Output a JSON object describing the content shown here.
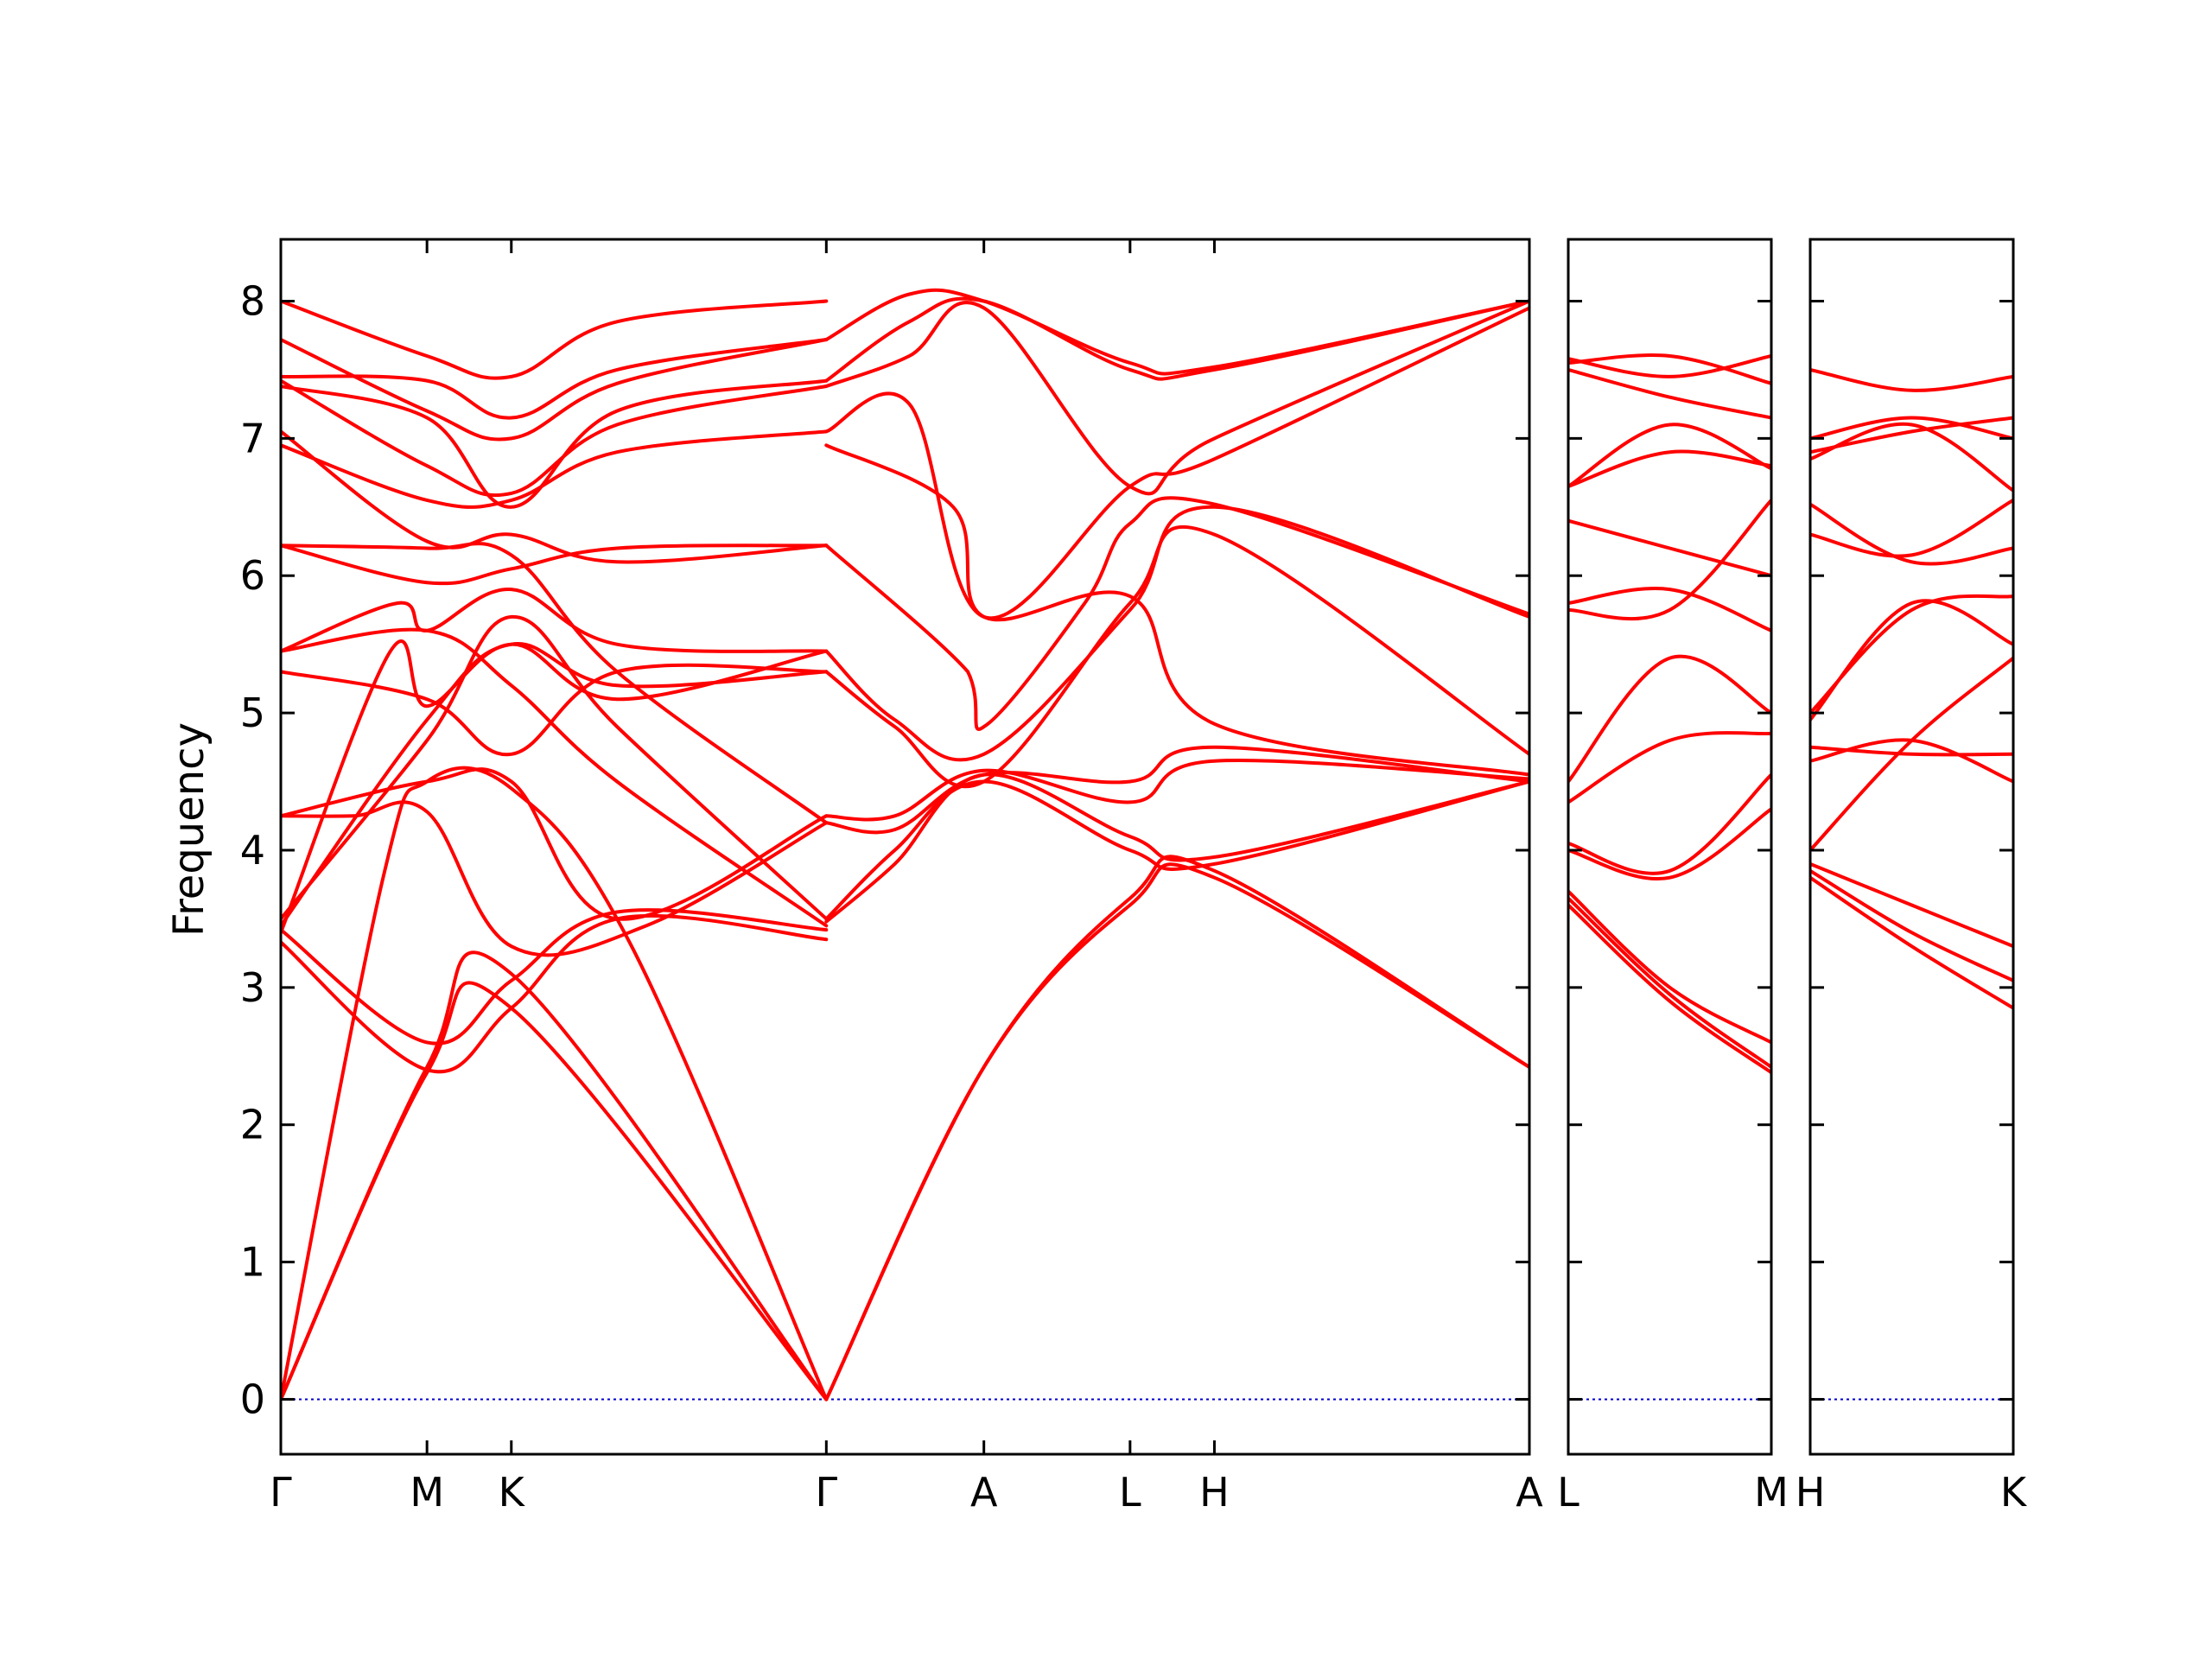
{
  "chart_data": {
    "type": "line",
    "title": "",
    "ylabel": "Frequency",
    "xlabel": "",
    "ylim": [
      -0.4,
      8.45
    ],
    "yticks": [
      0,
      1,
      2,
      3,
      4,
      5,
      6,
      7,
      8
    ],
    "grid": false,
    "legend": "none",
    "colors": {
      "bands": "#ff0000",
      "zero_line": "#0000cc",
      "axes": "#000000"
    },
    "panels": [
      {
        "id": "panel-1",
        "labels": [
          "Γ",
          "M",
          "K",
          "Γ",
          "A",
          "L",
          "H",
          "A"
        ],
        "points": [
          0,
          1.0,
          1.577,
          3.732,
          4.81,
          5.81,
          6.387,
          8.542
        ],
        "bands": [
          {
            "x": [
              0,
              1.0,
              1.577,
              3.732
            ],
            "y": [
              0.0,
              2.38,
              2.85,
              0.0
            ]
          },
          {
            "x": [
              0,
              1.0,
              1.577,
              3.732
            ],
            "y": [
              0.0,
              2.42,
              3.1,
              0.0
            ]
          },
          {
            "x": [
              0,
              0.7,
              1.0,
              1.577,
              2.4,
              3.732
            ],
            "y": [
              0.0,
              3.8,
              4.5,
              4.45,
              3.3,
              0.0
            ]
          },
          {
            "x": [
              3.732,
              4.81,
              5.81,
              6.387,
              8.542
            ],
            "y": [
              0.0,
              2.42,
              3.6,
              3.8,
              2.42
            ]
          },
          {
            "x": [
              3.732,
              4.81,
              5.81,
              6.387,
              8.542
            ],
            "y": [
              0.0,
              2.42,
              3.65,
              3.85,
              2.42
            ]
          },
          {
            "x": [
              0,
              1.0,
              1.577,
              2.3,
              3.732
            ],
            "y": [
              3.33,
              2.4,
              2.85,
              3.5,
              3.35
            ]
          },
          {
            "x": [
              0,
              1.0,
              1.577,
              2.3,
              3.732
            ],
            "y": [
              3.42,
              2.6,
              3.05,
              3.55,
              3.42
            ]
          },
          {
            "x": [
              0,
              0.5,
              1.0,
              1.577,
              2.5,
              3.732
            ],
            "y": [
              4.25,
              4.25,
              4.28,
              3.3,
              3.45,
              4.2
            ]
          },
          {
            "x": [
              0,
              1.0,
              1.577,
              2.3,
              3.732
            ],
            "y": [
              4.25,
              4.5,
              4.5,
              3.5,
              4.25
            ]
          },
          {
            "x": [
              0,
              1.0,
              1.577,
              2.3,
              3.732
            ],
            "y": [
              3.5,
              4.8,
              5.7,
              4.9,
              3.5
            ]
          },
          {
            "x": [
              0,
              1.0,
              1.577,
              2.3,
              3.732
            ],
            "y": [
              3.45,
              4.95,
              5.5,
              5.2,
              5.3
            ]
          },
          {
            "x": [
              0,
              0.75,
              1.0,
              1.577,
              2.3,
              3.732
            ],
            "y": [
              3.4,
              5.45,
              5.05,
              5.5,
              5.1,
              5.45
            ]
          },
          {
            "x": [
              0,
              1.0,
              1.577,
              2.3,
              3.732
            ],
            "y": [
              5.3,
              5.1,
              4.7,
              5.3,
              5.3
            ]
          },
          {
            "x": [
              0,
              1.0,
              1.577,
              2.3,
              3.732
            ],
            "y": [
              5.45,
              5.6,
              5.2,
              4.5,
              3.45
            ]
          },
          {
            "x": [
              0,
              0.8,
              1.0,
              1.577,
              2.3,
              3.732
            ],
            "y": [
              5.45,
              5.8,
              5.6,
              5.9,
              5.5,
              5.45
            ]
          },
          {
            "x": [
              0,
              1.0,
              1.577,
              2.3,
              3.732
            ],
            "y": [
              6.22,
              6.2,
              6.15,
              5.3,
              4.2
            ]
          },
          {
            "x": [
              0,
              1.0,
              1.577,
              2.3,
              3.732
            ],
            "y": [
              6.22,
              5.95,
              6.05,
              6.2,
              6.22
            ]
          },
          {
            "x": [
              0,
              1.0,
              1.577,
              2.3,
              3.732
            ],
            "y": [
              7.05,
              6.25,
              6.3,
              6.1,
              6.22
            ]
          },
          {
            "x": [
              0,
              1.0,
              1.577,
              2.3,
              3.732
            ],
            "y": [
              6.95,
              6.55,
              6.55,
              6.9,
              7.05
            ]
          },
          {
            "x": [
              0,
              1.0,
              1.577,
              2.3,
              3.732
            ],
            "y": [
              7.42,
              6.8,
              6.6,
              7.1,
              7.38
            ]
          },
          {
            "x": [
              0,
              1.0,
              1.577,
              2.3,
              3.732
            ],
            "y": [
              7.38,
              7.15,
              6.5,
              7.2,
              7.42
            ]
          },
          {
            "x": [
              0,
              1.0,
              1.577,
              2.3,
              3.732
            ],
            "y": [
              7.72,
              7.2,
              7.0,
              7.4,
              7.72
            ]
          },
          {
            "x": [
              0,
              1.0,
              1.577,
              2.3,
              3.732
            ],
            "y": [
              7.45,
              7.42,
              7.15,
              7.5,
              7.72
            ]
          },
          {
            "x": [
              0,
              1.0,
              1.577,
              2.3,
              3.732
            ],
            "y": [
              8.0,
              7.6,
              7.45,
              7.85,
              8.0
            ]
          },
          {
            "x": [
              3.732,
              4.2,
              4.81,
              5.81,
              6.387,
              8.542
            ],
            "y": [
              3.48,
              3.9,
              4.55,
              4.1,
              3.95,
              4.5
            ]
          },
          {
            "x": [
              3.732,
              4.2,
              4.81,
              5.81,
              6.387,
              8.542
            ],
            "y": [
              3.5,
              4.0,
              4.5,
              4.0,
              3.9,
              4.5
            ]
          },
          {
            "x": [
              3.732,
              4.2,
              4.81,
              5.81,
              6.387,
              8.542
            ],
            "y": [
              4.2,
              4.15,
              4.55,
              4.5,
              4.75,
              4.5
            ]
          },
          {
            "x": [
              3.732,
              4.2,
              4.81,
              5.81,
              6.387,
              8.542
            ],
            "y": [
              4.25,
              4.25,
              4.58,
              4.35,
              4.65,
              4.52
            ]
          },
          {
            "x": [
              3.732,
              4.2,
              4.81,
              5.81,
              6.387,
              8.542
            ],
            "y": [
              5.3,
              4.9,
              4.5,
              5.8,
              6.3,
              4.7
            ]
          },
          {
            "x": [
              3.732,
              4.2,
              4.81,
              5.81,
              6.387,
              8.542
            ],
            "y": [
              5.45,
              4.95,
              4.7,
              5.75,
              6.5,
              5.7
            ]
          },
          {
            "x": [
              3.732,
              4.7,
              4.81,
              5.5,
              5.81,
              6.387,
              8.542
            ],
            "y": [
              6.22,
              5.3,
              4.9,
              5.8,
              6.38,
              6.52,
              5.72
            ]
          },
          {
            "x": [
              3.732,
              4.6,
              4.81,
              5.81,
              6.387,
              8.542
            ],
            "y": [
              6.95,
              6.5,
              5.7,
              5.85,
              4.92,
              4.55
            ]
          },
          {
            "x": [
              3.732,
              4.3,
              4.81,
              5.81,
              6.387,
              8.542
            ],
            "y": [
              7.05,
              7.25,
              5.7,
              6.65,
              6.85,
              7.95
            ]
          },
          {
            "x": [
              3.732,
              4.3,
              4.81,
              5.81,
              6.387,
              8.542
            ],
            "y": [
              7.38,
              7.6,
              7.95,
              6.65,
              7.0,
              8.0
            ]
          },
          {
            "x": [
              3.732,
              4.3,
              4.81,
              5.81,
              6.387,
              8.542
            ],
            "y": [
              7.42,
              7.85,
              8.0,
              7.5,
              7.5,
              8.0
            ]
          },
          {
            "x": [
              3.732,
              4.3,
              4.81,
              5.81,
              6.387,
              8.542
            ],
            "y": [
              7.72,
              8.05,
              8.0,
              7.55,
              7.52,
              8.0
            ]
          }
        ]
      },
      {
        "id": "panel-2",
        "labels": [
          "L",
          "M"
        ],
        "points": [
          0,
          1
        ],
        "bands": [
          {
            "x": [
              0,
              0.5,
              1
            ],
            "y": [
              3.6,
              2.9,
              2.38
            ]
          },
          {
            "x": [
              0,
              0.5,
              1
            ],
            "y": [
              3.65,
              2.95,
              2.42
            ]
          },
          {
            "x": [
              0,
              0.5,
              1
            ],
            "y": [
              3.7,
              3.0,
              2.6
            ]
          },
          {
            "x": [
              0,
              0.5,
              1
            ],
            "y": [
              4.0,
              3.8,
              4.3
            ]
          },
          {
            "x": [
              0,
              0.5,
              1
            ],
            "y": [
              4.05,
              3.85,
              4.55
            ]
          },
          {
            "x": [
              0,
              0.5,
              1
            ],
            "y": [
              4.35,
              4.8,
              4.85
            ]
          },
          {
            "x": [
              0,
              0.5,
              1
            ],
            "y": [
              4.5,
              5.4,
              5.0
            ]
          },
          {
            "x": [
              0,
              0.5,
              1
            ],
            "y": [
              5.75,
              5.75,
              6.55
            ]
          },
          {
            "x": [
              0,
              0.5,
              1
            ],
            "y": [
              5.8,
              5.9,
              5.6
            ]
          },
          {
            "x": [
              0,
              0.5,
              1
            ],
            "y": [
              6.4,
              6.2,
              6.0
            ]
          },
          {
            "x": [
              0,
              0.5,
              1
            ],
            "y": [
              6.65,
              7.1,
              6.78
            ]
          },
          {
            "x": [
              0,
              0.5,
              1
            ],
            "y": [
              6.65,
              6.9,
              6.8
            ]
          },
          {
            "x": [
              0,
              0.5,
              1
            ],
            "y": [
              7.5,
              7.3,
              7.15
            ]
          },
          {
            "x": [
              0,
              0.5,
              1
            ],
            "y": [
              7.55,
              7.6,
              7.4
            ]
          },
          {
            "x": [
              0,
              0.5,
              1
            ],
            "y": [
              7.58,
              7.45,
              7.6
            ]
          }
        ]
      },
      {
        "id": "panel-3",
        "labels": [
          "H",
          "K"
        ],
        "points": [
          0,
          1
        ],
        "bands": [
          {
            "x": [
              0,
              0.5,
              1
            ],
            "y": [
              3.8,
              3.3,
              2.85
            ]
          },
          {
            "x": [
              0,
              0.5,
              1
            ],
            "y": [
              3.85,
              3.4,
              3.05
            ]
          },
          {
            "x": [
              0,
              0.5,
              1
            ],
            "y": [
              3.9,
              3.6,
              3.3
            ]
          },
          {
            "x": [
              0,
              0.5,
              1
            ],
            "y": [
              4.0,
              4.8,
              5.4
            ]
          },
          {
            "x": [
              0,
              0.5,
              1
            ],
            "y": [
              4.65,
              4.8,
              4.5
            ]
          },
          {
            "x": [
              0,
              0.5,
              1
            ],
            "y": [
              4.75,
              4.7,
              4.7
            ]
          },
          {
            "x": [
              0,
              0.5,
              1
            ],
            "y": [
              4.95,
              5.8,
              5.5
            ]
          },
          {
            "x": [
              0,
              0.5,
              1
            ],
            "y": [
              5.0,
              5.75,
              5.85
            ]
          },
          {
            "x": [
              0,
              0.5,
              1
            ],
            "y": [
              6.3,
              6.15,
              6.55
            ]
          },
          {
            "x": [
              0,
              0.5,
              1
            ],
            "y": [
              6.52,
              6.1,
              6.2
            ]
          },
          {
            "x": [
              0,
              0.5,
              1
            ],
            "y": [
              6.85,
              7.1,
              6.62
            ]
          },
          {
            "x": [
              0,
              0.5,
              1
            ],
            "y": [
              6.9,
              7.05,
              7.15
            ]
          },
          {
            "x": [
              0,
              0.5,
              1
            ],
            "y": [
              7.0,
              7.15,
              7.0
            ]
          },
          {
            "x": [
              0,
              0.5,
              1
            ],
            "y": [
              7.5,
              7.35,
              7.45
            ]
          }
        ]
      }
    ]
  }
}
